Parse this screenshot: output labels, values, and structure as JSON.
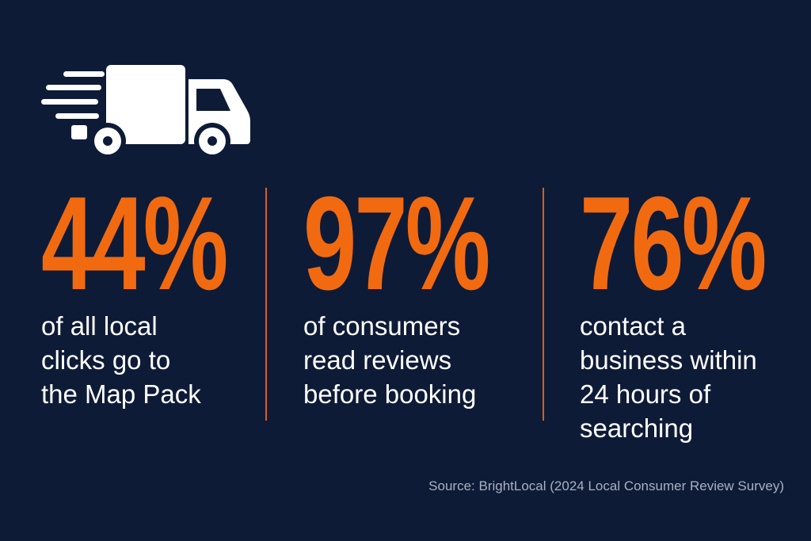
{
  "stats": [
    {
      "value": "44%",
      "lines": [
        "of all local",
        "clicks go to",
        "the Map Pack"
      ]
    },
    {
      "value": "97%",
      "lines": [
        "of consumers",
        "read reviews",
        "before booking"
      ]
    },
    {
      "value": "76%",
      "lines": [
        "contact a",
        "business within",
        "24 hours of",
        "searching"
      ]
    }
  ],
  "source": "Source: BrightLocal (2024 Local Consumer Review Survey)"
}
